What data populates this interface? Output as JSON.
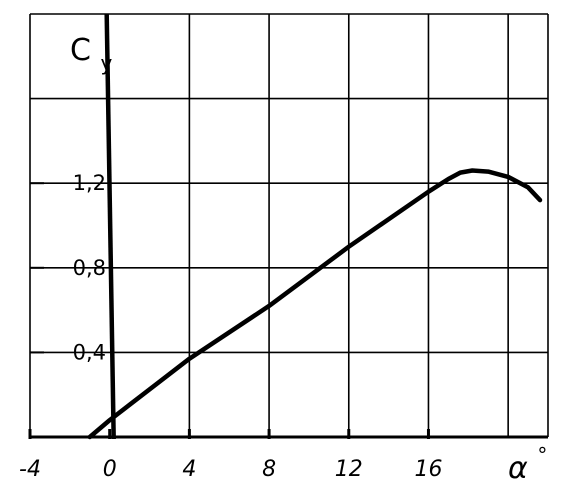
{
  "chart_data": {
    "type": "line",
    "title": "",
    "xlabel": "α°",
    "ylabel": "Cy",
    "ylabel_main": "C",
    "ylabel_sub": "y",
    "xlabel_main": "α",
    "xlabel_sup": "°",
    "xlim": [
      -4,
      22
    ],
    "ylim": [
      0,
      2.0
    ],
    "grid": true,
    "x_ticks": [
      -4,
      0,
      4,
      8,
      12,
      16
    ],
    "x_tick_labels": [
      "-4",
      "0",
      "4",
      "8",
      "12",
      "16"
    ],
    "y_ticks": [
      0.4,
      0.8,
      1.2
    ],
    "y_tick_labels": [
      "0,4",
      "0,8",
      "1,2"
    ],
    "series": [
      {
        "x": [
          -1.0,
          0,
          4,
          8,
          12,
          16,
          17,
          17.6,
          18.2,
          19,
          20,
          21,
          21.6
        ],
        "y": [
          0.0,
          0.08,
          0.37,
          0.62,
          0.9,
          1.16,
          1.22,
          1.25,
          1.26,
          1.255,
          1.23,
          1.18,
          1.12
        ]
      }
    ],
    "colors": {
      "ink": "#000000",
      "background": "#ffffff"
    }
  }
}
